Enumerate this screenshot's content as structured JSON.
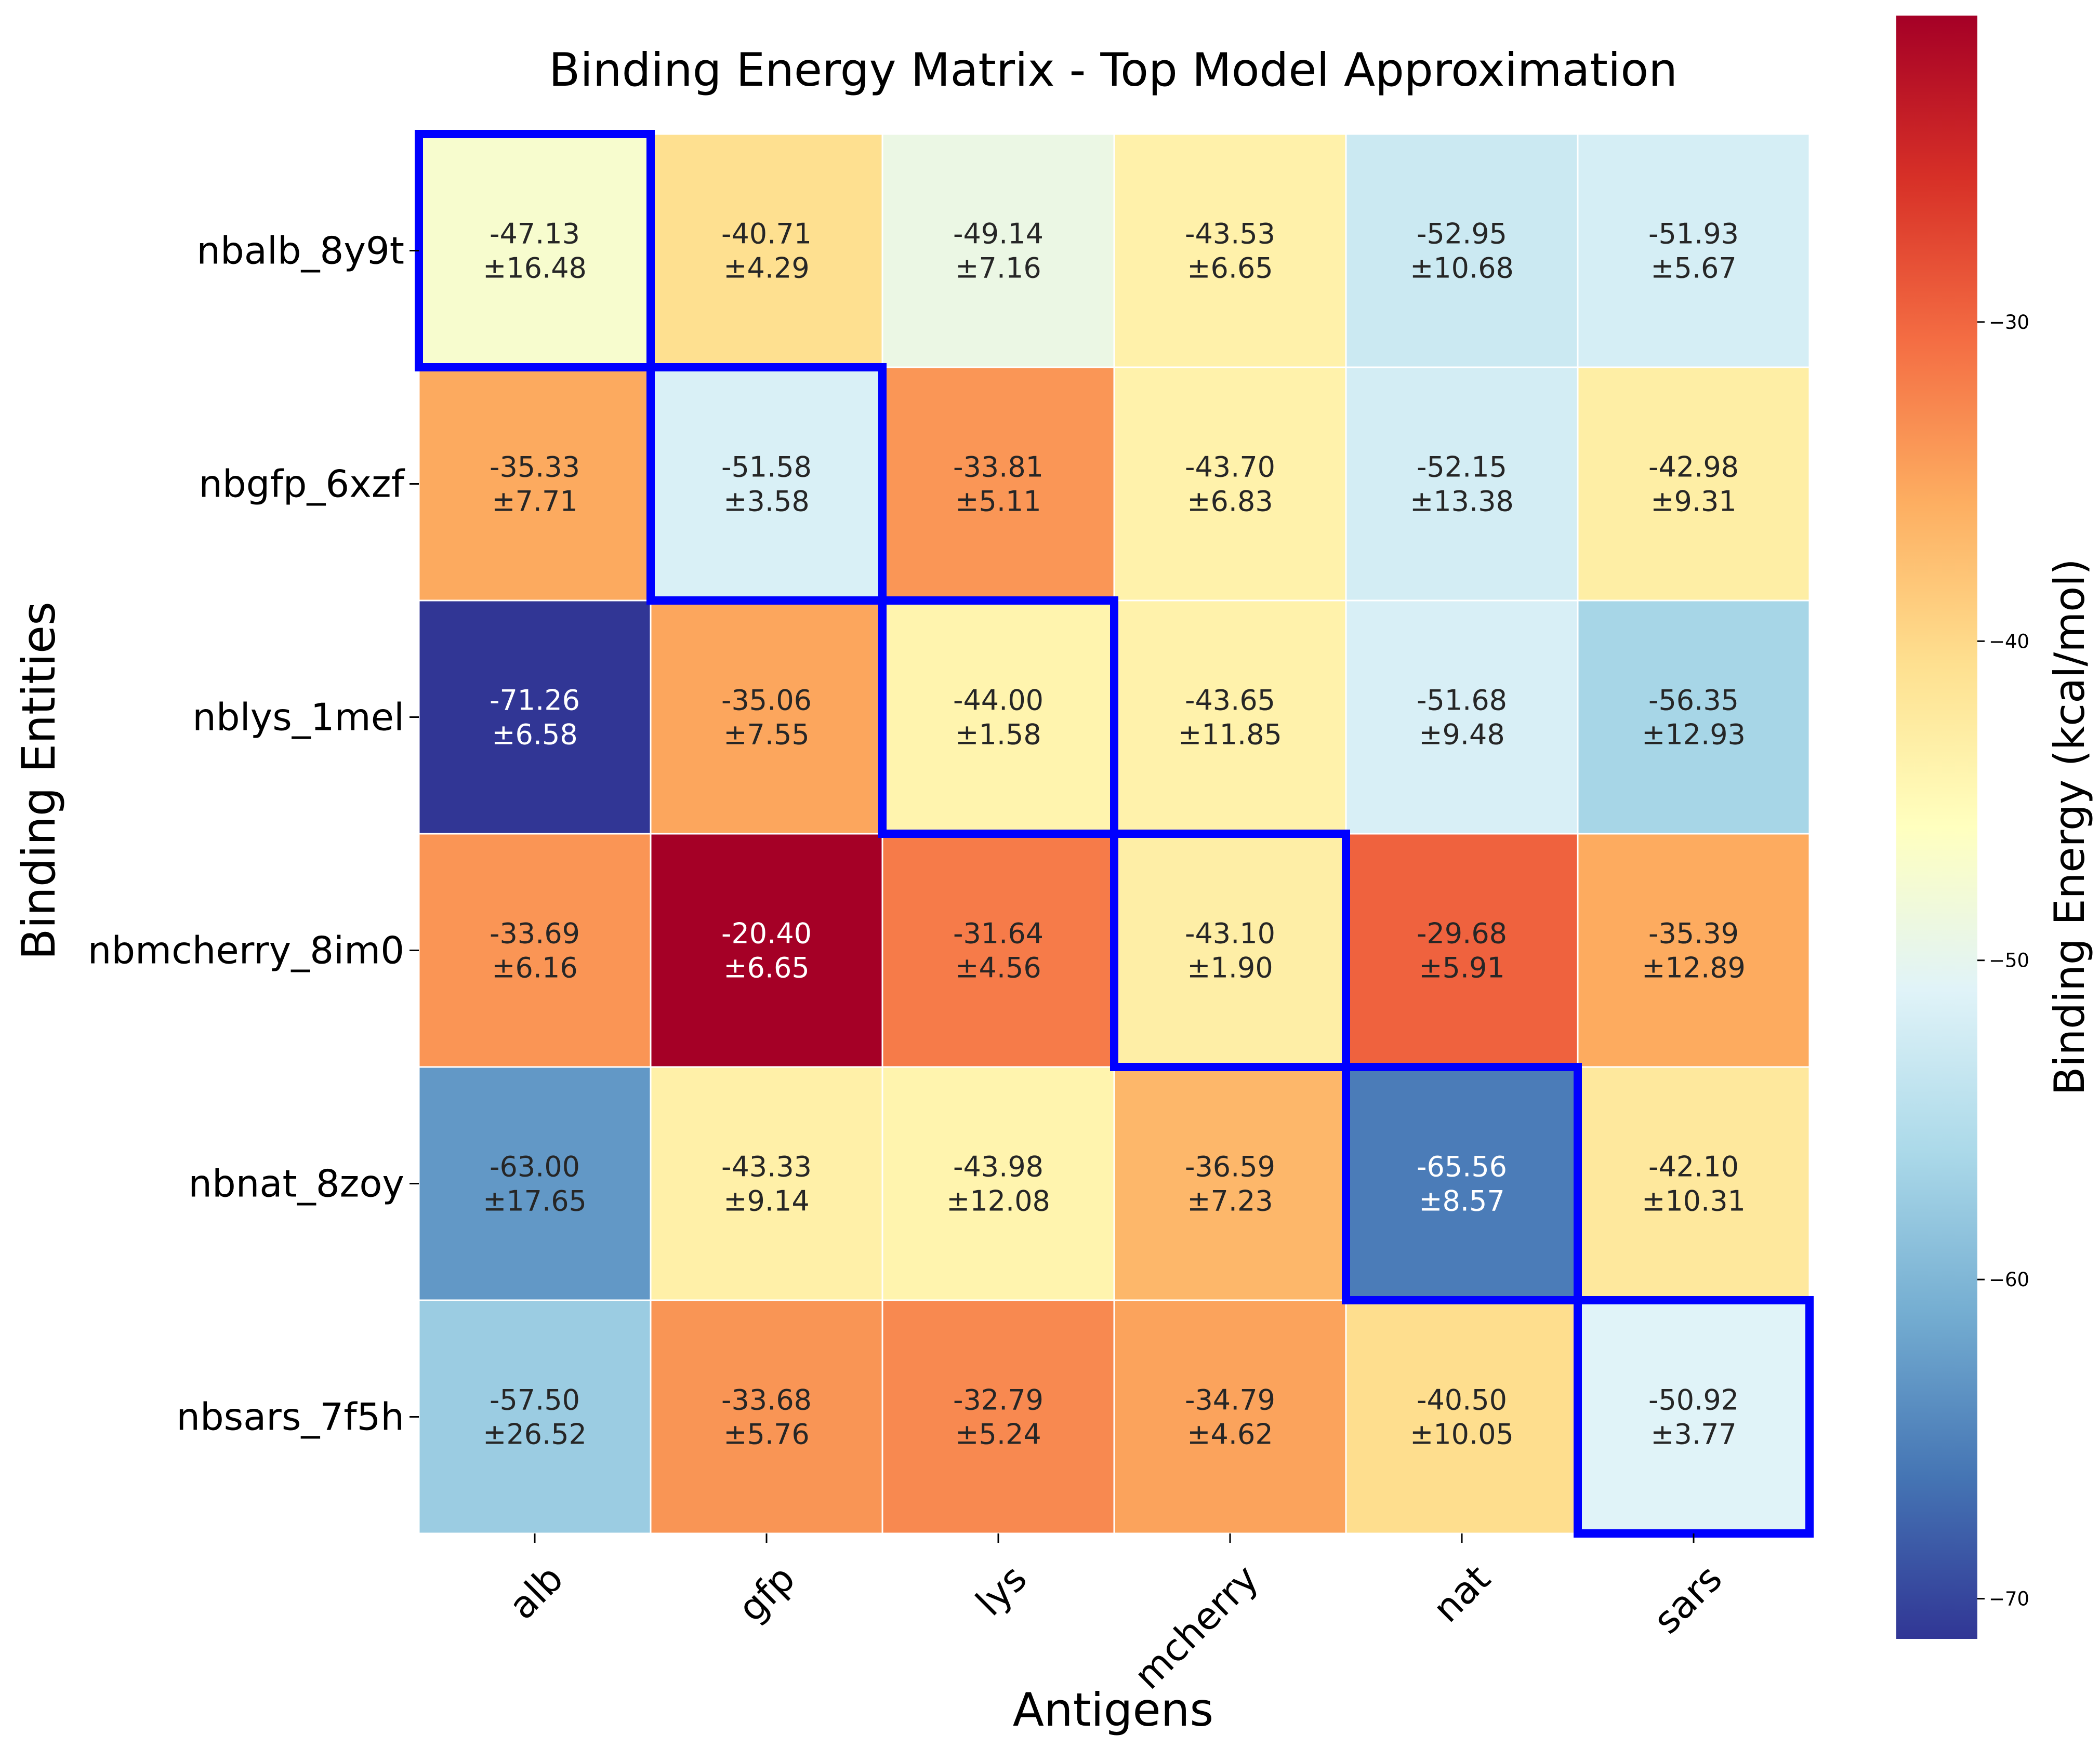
{
  "chart_data": {
    "type": "heatmap",
    "title": "Binding Energy Matrix - Top Model Approximation",
    "xlabel": "Antigens",
    "ylabel": "Binding Entities",
    "colorbar_label": "Binding Energy (kcal/mol)",
    "colormap": "RdYlBu_r",
    "value_range": [
      -71.26,
      -20.4
    ],
    "colorbar_ticks": [
      -30,
      -40,
      -50,
      -60,
      -70
    ],
    "colorbar_tick_labels": [
      "−30",
      "−40",
      "−50",
      "−60",
      "−70"
    ],
    "columns": [
      "alb",
      "gfp",
      "lys",
      "mcherry",
      "nat",
      "sars"
    ],
    "rows": [
      "nbalb_8y9t",
      "nbgfp_6xzf",
      "nblys_1mel",
      "nbmcherry_8im0",
      "nbnat_8zoy",
      "nbsars_7f5h"
    ],
    "values": [
      [
        -47.13,
        -40.71,
        -49.14,
        -43.53,
        -52.95,
        -51.93
      ],
      [
        -35.33,
        -51.58,
        -33.81,
        -43.7,
        -52.15,
        -42.98
      ],
      [
        -71.26,
        -35.06,
        -44.0,
        -43.65,
        -51.68,
        -56.35
      ],
      [
        -33.69,
        -20.4,
        -31.64,
        -43.1,
        -29.68,
        -35.39
      ],
      [
        -63.0,
        -43.33,
        -43.98,
        -36.59,
        -65.56,
        -42.1
      ],
      [
        -57.5,
        -33.68,
        -32.79,
        -34.79,
        -40.5,
        -50.92
      ]
    ],
    "value_labels": [
      [
        "-47.13",
        "-40.71",
        "-49.14",
        "-43.53",
        "-52.95",
        "-51.93"
      ],
      [
        "-35.33",
        "-51.58",
        "-33.81",
        "-43.70",
        "-52.15",
        "-42.98"
      ],
      [
        "-71.26",
        "-35.06",
        "-44.00",
        "-43.65",
        "-51.68",
        "-56.35"
      ],
      [
        "-33.69",
        "-20.40",
        "-31.64",
        "-43.10",
        "-29.68",
        "-35.39"
      ],
      [
        "-63.00",
        "-43.33",
        "-43.98",
        "-36.59",
        "-65.56",
        "-42.10"
      ],
      [
        "-57.50",
        "-33.68",
        "-32.79",
        "-34.79",
        "-40.50",
        "-50.92"
      ]
    ],
    "errors": [
      [
        "±16.48",
        "±4.29",
        "±7.16",
        "±6.65",
        "±10.68",
        "±5.67"
      ],
      [
        "±7.71",
        "±3.58",
        "±5.11",
        "±6.83",
        "±13.38",
        "±9.31"
      ],
      [
        "±6.58",
        "±7.55",
        "±1.58",
        "±11.85",
        "±9.48",
        "±12.93"
      ],
      [
        "±6.16",
        "±6.65",
        "±4.56",
        "±1.90",
        "±5.91",
        "±12.89"
      ],
      [
        "±17.65",
        "±9.14",
        "±12.08",
        "±7.23",
        "±8.57",
        "±10.31"
      ],
      [
        "±26.52",
        "±5.76",
        "±5.24",
        "±4.62",
        "±10.05",
        "±3.77"
      ]
    ],
    "highlight": "diagonal",
    "highlight_color": "#0000ff",
    "grid": false
  }
}
